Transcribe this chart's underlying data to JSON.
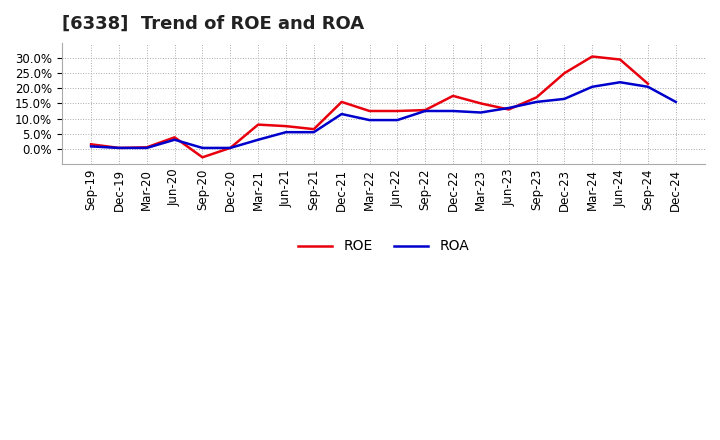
{
  "title": "[6338]  Trend of ROE and ROA",
  "labels": [
    "Sep-19",
    "Dec-19",
    "Mar-20",
    "Jun-20",
    "Sep-20",
    "Dec-20",
    "Mar-21",
    "Jun-21",
    "Sep-21",
    "Dec-21",
    "Mar-22",
    "Jun-22",
    "Sep-22",
    "Dec-22",
    "Mar-23",
    "Jun-23",
    "Sep-23",
    "Dec-23",
    "Mar-24",
    "Jun-24",
    "Sep-24",
    "Dec-24"
  ],
  "ROE": [
    1.5,
    0.3,
    0.5,
    3.8,
    -2.8,
    0.3,
    8.0,
    7.5,
    6.5,
    15.5,
    12.5,
    12.5,
    12.8,
    17.5,
    15.0,
    13.0,
    17.0,
    25.0,
    30.5,
    29.5,
    21.5,
    null
  ],
  "ROA": [
    0.8,
    0.3,
    0.3,
    3.0,
    0.3,
    0.3,
    3.0,
    5.5,
    5.5,
    11.5,
    9.5,
    9.5,
    12.5,
    12.5,
    12.0,
    13.5,
    15.5,
    16.5,
    20.5,
    22.0,
    20.5,
    15.5
  ],
  "roe_color": "#e8000d",
  "roa_color": "#0000cc",
  "bg_color": "#ffffff",
  "plot_bg_color": "#ffffff",
  "grid_color": "#aaaaaa",
  "ylim": [
    -5,
    35
  ],
  "yticks": [
    0.0,
    5.0,
    10.0,
    15.0,
    20.0,
    25.0,
    30.0
  ],
  "title_fontsize": 13,
  "legend_fontsize": 10,
  "tick_fontsize": 8.5
}
